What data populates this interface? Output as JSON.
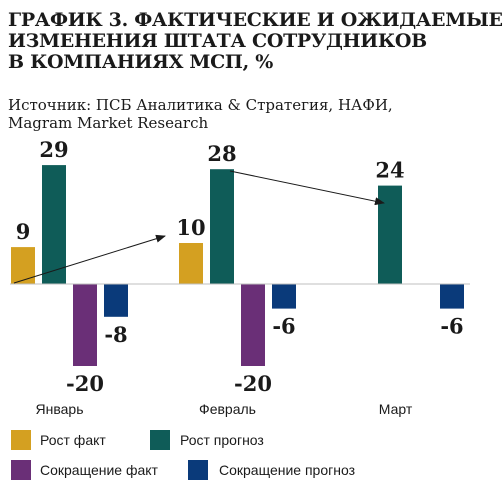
{
  "title_lines": [
    "ГРАФИК 3. ФАКТИЧЕСКИЕ И ОЖИДАЕМЫЕ",
    "ИЗМЕНЕНИЯ ШТАТА СОТРУДНИКОВ",
    "В КОМПАНИЯХ МСП, %"
  ],
  "source_lines": [
    "Источник: ПСБ Аналитика & Стратегия, НАФИ,",
    "Magram Market Research"
  ],
  "chart_data": {
    "type": "bar",
    "categories": [
      "Январь",
      "Февраль",
      "Март"
    ],
    "series": [
      {
        "name": "Рост факт",
        "color": "#d4a021",
        "values": [
          9,
          10,
          null
        ]
      },
      {
        "name": "Рост прогноз",
        "color": "#0f5c58",
        "values": [
          29,
          28,
          24
        ]
      },
      {
        "name": "Сокращение факт",
        "color": "#6a2f77",
        "values": [
          -20,
          -20,
          null
        ]
      },
      {
        "name": "Сокращение прогноз",
        "color": "#0a3a7a",
        "values": [
          -8,
          -6,
          -6
        ]
      }
    ],
    "data_labels": [
      [
        "9",
        "29",
        "-20",
        "-8"
      ],
      [
        "10",
        "28",
        "-20",
        "-6"
      ],
      [
        null,
        "24",
        null,
        "-6"
      ]
    ],
    "annotations": [
      {
        "type": "arrow",
        "from": {
          "category": "Январь",
          "series": "Рост факт"
        },
        "to": {
          "category": "Февраль",
          "series": "Рост факт"
        }
      },
      {
        "type": "arrow",
        "from": {
          "category": "Февраль",
          "series": "Рост прогноз"
        },
        "to": {
          "category": "Март",
          "series": "Рост прогноз"
        }
      }
    ],
    "ylim": [
      -20,
      29
    ],
    "grid": false,
    "legend_position": "bottom"
  }
}
